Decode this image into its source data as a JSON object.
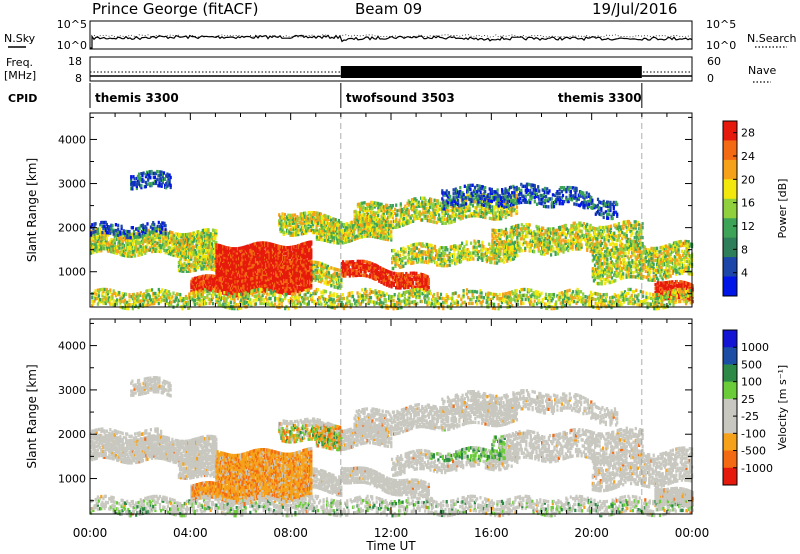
{
  "header": {
    "title": "Prince George (fitACF)",
    "beam": "Beam 09",
    "date": "19/Jul/2016"
  },
  "left_labels": {
    "nsky": "N.Sky",
    "freq_line1": "Freq.",
    "freq_line2": "[MHz]",
    "cpid": "CPID"
  },
  "right_labels": {
    "nsearch": "N.Search",
    "nave": "Nave"
  },
  "noise_axis": {
    "left_ticks": [
      "10^5",
      "10^0"
    ],
    "right_ticks": [
      "10^5",
      "10^0"
    ]
  },
  "freq_axis": {
    "left_ticks": [
      "18",
      "8"
    ],
    "right_ticks": [
      "60",
      "0"
    ]
  },
  "cpid_segments": [
    {
      "name": "themis 3300",
      "from_hour": 0,
      "to_hour": 10
    },
    {
      "name": "twofsound 3503",
      "from_hour": 10,
      "to_hour": 22
    },
    {
      "name": "themis 3300",
      "from_hour": 22,
      "to_hour": 24
    }
  ],
  "colors": {
    "power": [
      "#0015e8",
      "#1c46a8",
      "#2e7e5a",
      "#3da457",
      "#8fd03c",
      "#f3e80c",
      "#f5a21a",
      "#f36a13",
      "#e61a0c"
    ],
    "velocity": [
      "#e61a0c",
      "#f36a13",
      "#f5a21a",
      "#c8c8c0",
      "#c8c8c0",
      "#6bcc3a",
      "#2d8a46",
      "#1c4ea6",
      "#1414d4"
    ]
  },
  "chart_data": [
    {
      "type": "heatmap",
      "quantity": "Power",
      "xlabel": "",
      "ylabel": "Slant Range [km]",
      "x_range_hours": [
        0,
        24
      ],
      "ylim": [
        200,
        4600
      ],
      "y_ticks": [
        1000,
        2000,
        3000,
        4000
      ],
      "x_tick_labels": [
        "00:00",
        "04:00",
        "08:00",
        "12:00",
        "16:00",
        "20:00",
        "00:00"
      ],
      "colorbar": {
        "label": "Power [dB]",
        "ticks": [
          "4",
          "8",
          "12",
          "16",
          "20",
          "24",
          "28"
        ],
        "range": [
          0,
          30
        ]
      }
    },
    {
      "type": "heatmap",
      "quantity": "Velocity",
      "xlabel": "Time UT",
      "ylabel": "Slant Range [km]",
      "x_range_hours": [
        0,
        24
      ],
      "ylim": [
        200,
        4600
      ],
      "y_ticks": [
        1000,
        2000,
        3000,
        4000
      ],
      "x_tick_labels": [
        "00:00",
        "04:00",
        "08:00",
        "12:00",
        "16:00",
        "20:00",
        "00:00"
      ],
      "colorbar": {
        "label": "Velocity [m s⁻¹]",
        "ticks": [
          "-1000",
          "-500",
          "-100",
          "-25",
          "25",
          "100",
          "500",
          "1000"
        ]
      }
    }
  ]
}
